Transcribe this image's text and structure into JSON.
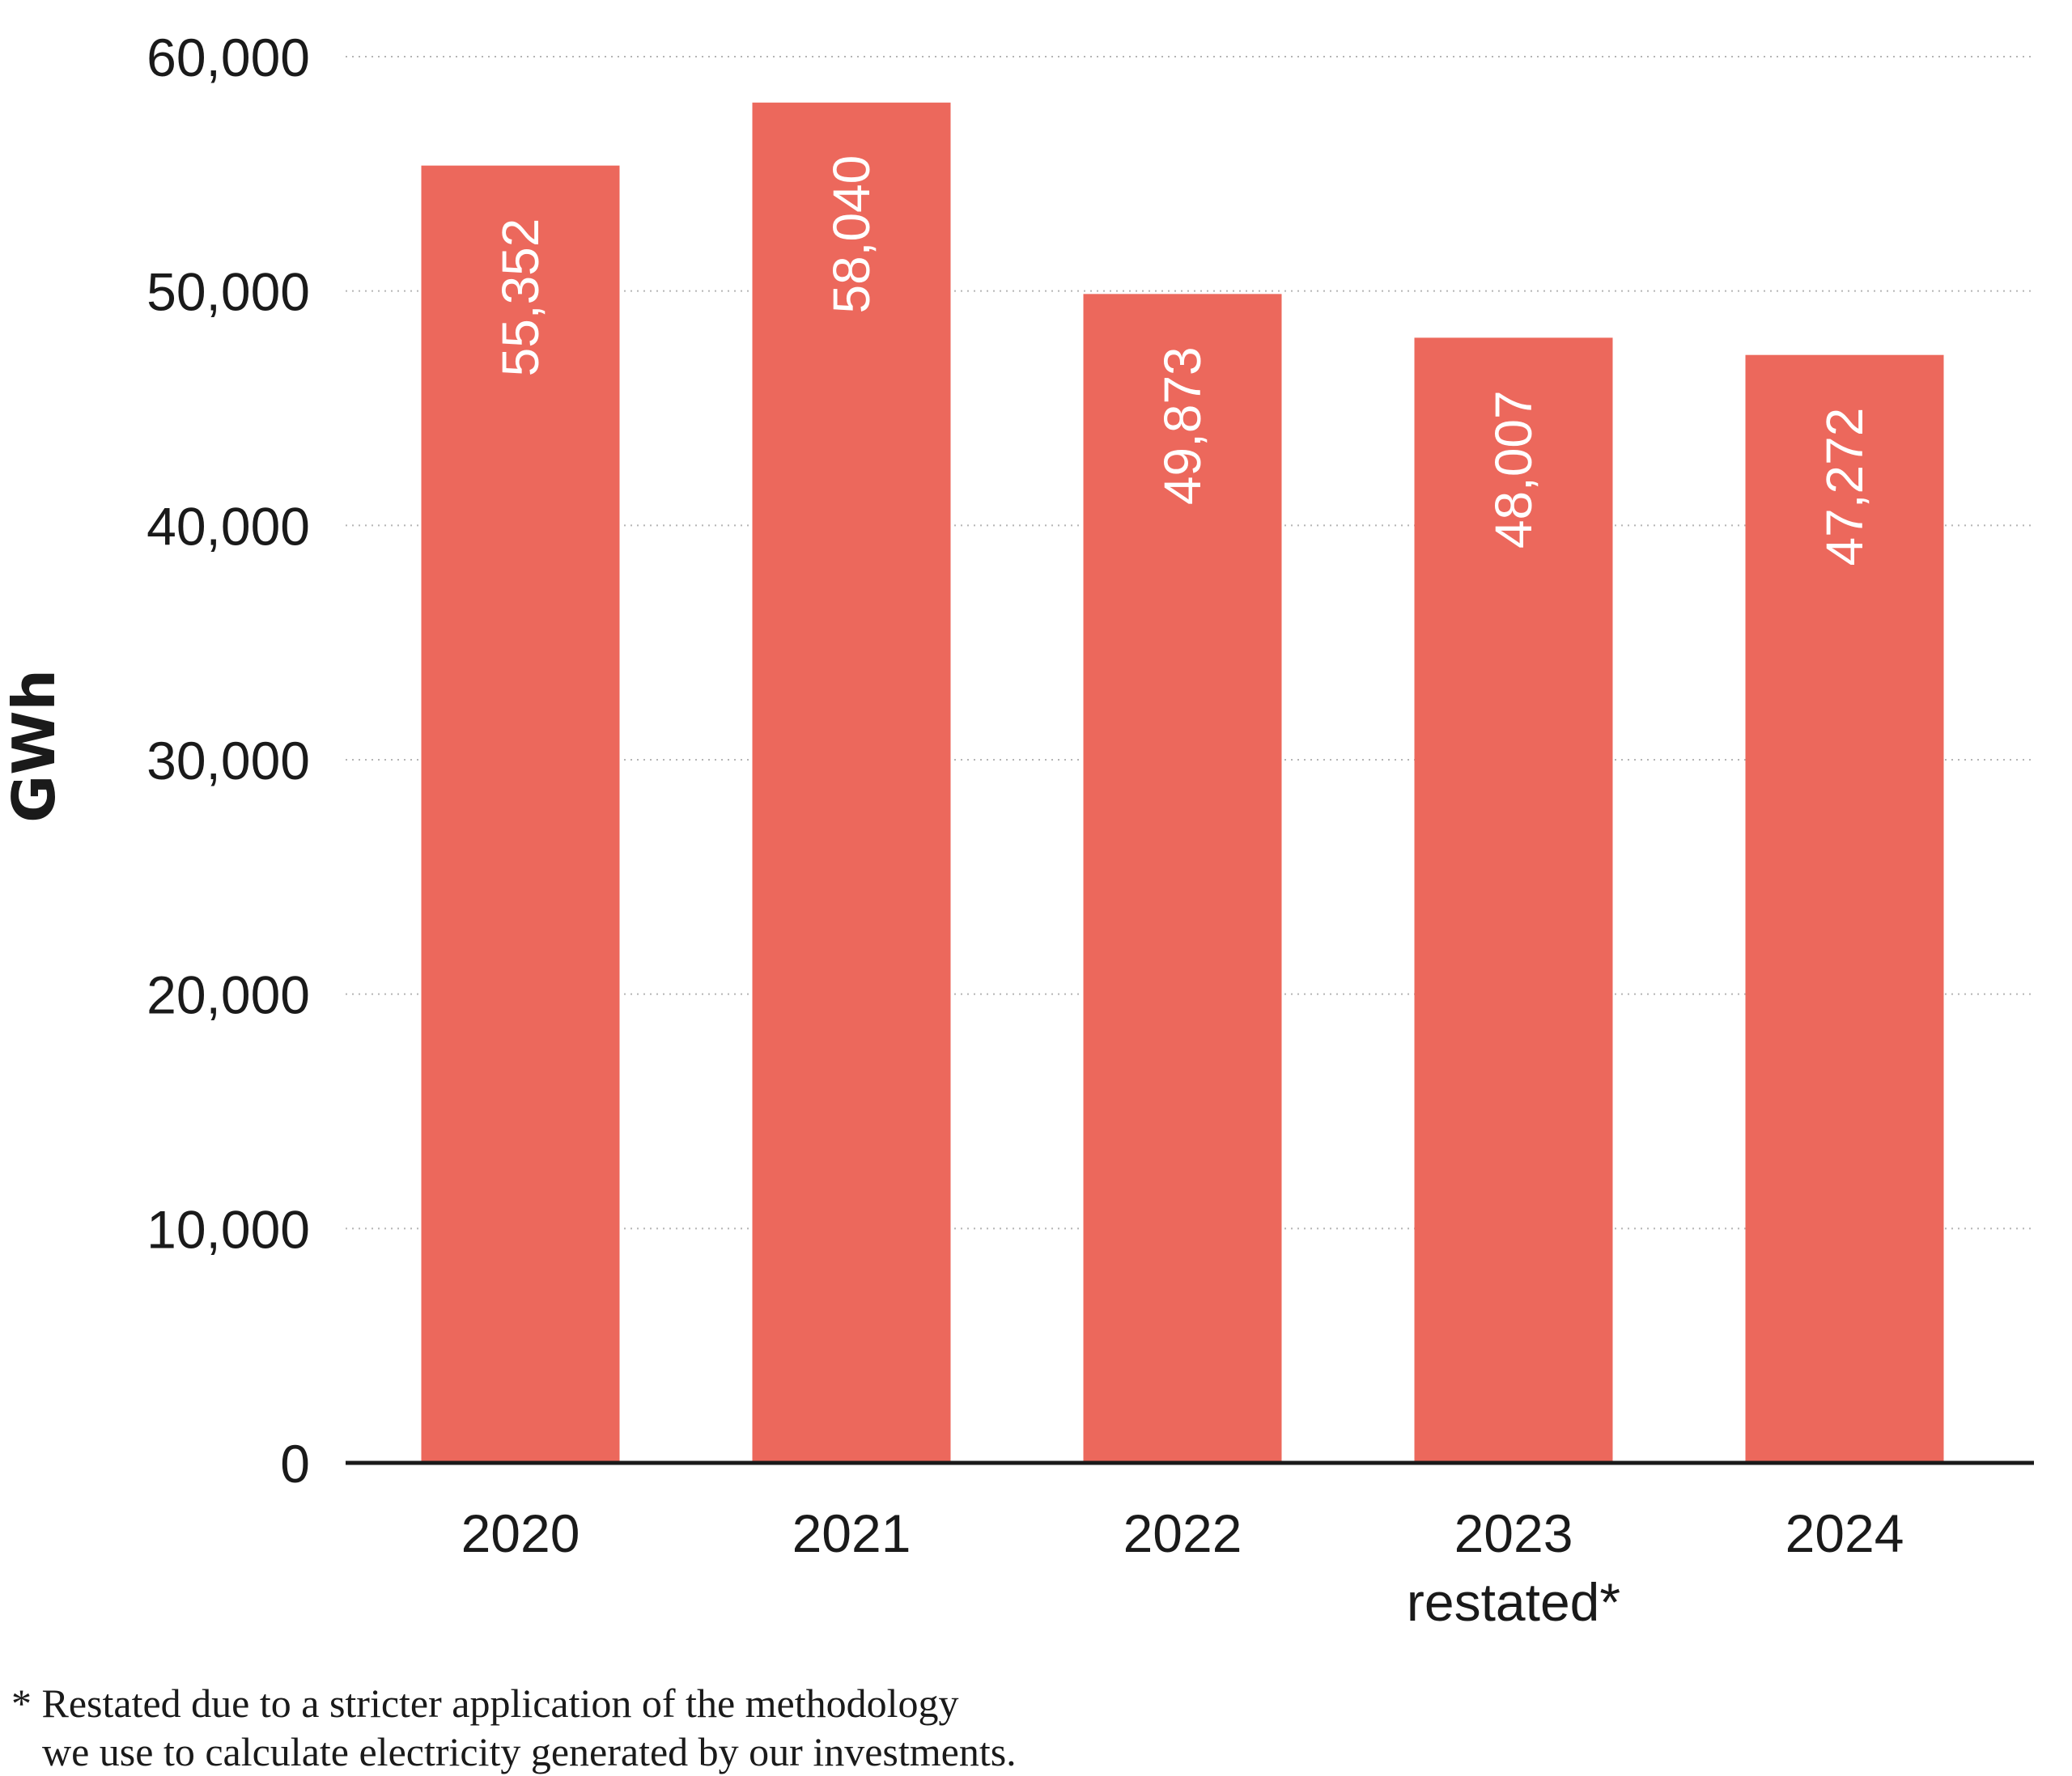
{
  "chart_data": {
    "type": "bar",
    "categories": [
      "2020",
      "2021",
      "2022",
      "2023",
      "2024"
    ],
    "category_sublabels": [
      "",
      "",
      "",
      "restated*",
      ""
    ],
    "values": [
      55352,
      58040,
      49873,
      48007,
      47272
    ],
    "data_labels": [
      "55,352",
      "58,040",
      "49,873",
      "48,007",
      "47,272"
    ],
    "ylabel": "GWh",
    "ylim": [
      0,
      60000
    ],
    "yticks": [
      0,
      10000,
      20000,
      30000,
      40000,
      50000,
      60000
    ],
    "ytick_labels": [
      "0",
      "10,000",
      "20,000",
      "30,000",
      "40,000",
      "50,000",
      "60,000"
    ],
    "grid": true,
    "bar_color": "#ec685c"
  },
  "footnote": {
    "line1": "* Restated due to a stricter application of the methodology",
    "line2": "we use to calculate electricity generated by our investments."
  }
}
